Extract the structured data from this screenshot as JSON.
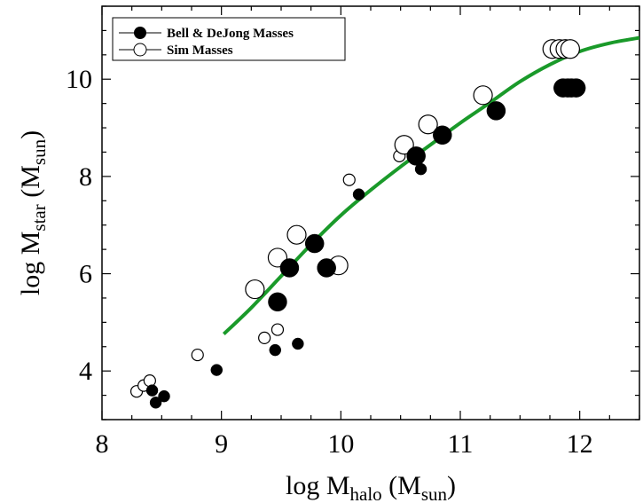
{
  "chart_data": {
    "type": "scatter",
    "xlim": [
      8,
      12.5
    ],
    "ylim": [
      3,
      11.5
    ],
    "xticks": [
      8,
      9,
      10,
      11,
      12
    ],
    "yticks": [
      4,
      6,
      8,
      10
    ],
    "xlabel": {
      "main": "log M",
      "sub": "halo",
      "unit_open": " (M",
      "unit_sub": "sun",
      "unit_close": ")"
    },
    "ylabel": {
      "main": "log M",
      "sub": "star",
      "unit_open": " (M",
      "unit_sub": "sun",
      "unit_close": ")"
    },
    "legend": {
      "placement": "top-left"
    },
    "series": [
      {
        "name": "Bell & DeJong Masses",
        "marker": "filled-circle",
        "color": "#000000",
        "points": [
          {
            "x": 8.42,
            "y": 3.6,
            "size": 1
          },
          {
            "x": 8.45,
            "y": 3.35,
            "size": 1
          },
          {
            "x": 8.52,
            "y": 3.48,
            "size": 1
          },
          {
            "x": 8.96,
            "y": 4.02,
            "size": 1
          },
          {
            "x": 9.45,
            "y": 4.43,
            "size": 1
          },
          {
            "x": 9.47,
            "y": 5.42,
            "size": 2
          },
          {
            "x": 9.57,
            "y": 6.12,
            "size": 2
          },
          {
            "x": 9.64,
            "y": 4.56,
            "size": 1
          },
          {
            "x": 9.78,
            "y": 6.62,
            "size": 2
          },
          {
            "x": 9.88,
            "y": 6.12,
            "size": 2
          },
          {
            "x": 10.15,
            "y": 7.63,
            "size": 1
          },
          {
            "x": 10.63,
            "y": 8.42,
            "size": 2
          },
          {
            "x": 10.67,
            "y": 8.15,
            "size": 1
          },
          {
            "x": 10.85,
            "y": 8.85,
            "size": 2
          },
          {
            "x": 11.3,
            "y": 9.35,
            "size": 2
          },
          {
            "x": 11.86,
            "y": 9.82,
            "size": 2
          },
          {
            "x": 11.9,
            "y": 9.82,
            "size": 2
          },
          {
            "x": 11.93,
            "y": 9.82,
            "size": 2
          },
          {
            "x": 11.97,
            "y": 9.82,
            "size": 2
          }
        ]
      },
      {
        "name": "Sim Masses",
        "marker": "open-circle",
        "color": "#000000",
        "points": [
          {
            "x": 8.29,
            "y": 3.58,
            "size": 1
          },
          {
            "x": 8.35,
            "y": 3.7,
            "size": 1
          },
          {
            "x": 8.4,
            "y": 3.8,
            "size": 1
          },
          {
            "x": 8.8,
            "y": 4.33,
            "size": 1
          },
          {
            "x": 9.28,
            "y": 5.68,
            "size": 2
          },
          {
            "x": 9.36,
            "y": 4.68,
            "size": 1
          },
          {
            "x": 9.47,
            "y": 4.85,
            "size": 1
          },
          {
            "x": 9.47,
            "y": 6.33,
            "size": 2
          },
          {
            "x": 9.63,
            "y": 6.8,
            "size": 2
          },
          {
            "x": 9.98,
            "y": 6.17,
            "size": 2
          },
          {
            "x": 10.07,
            "y": 7.93,
            "size": 1
          },
          {
            "x": 10.49,
            "y": 8.42,
            "size": 1
          },
          {
            "x": 10.53,
            "y": 8.65,
            "size": 2
          },
          {
            "x": 10.73,
            "y": 9.07,
            "size": 2
          },
          {
            "x": 11.19,
            "y": 9.67,
            "size": 2
          },
          {
            "x": 11.77,
            "y": 10.62,
            "size": 2
          },
          {
            "x": 11.83,
            "y": 10.62,
            "size": 2
          },
          {
            "x": 11.88,
            "y": 10.62,
            "size": 2
          },
          {
            "x": 11.92,
            "y": 10.62,
            "size": 2
          }
        ]
      }
    ],
    "curve": {
      "color": "#1a9a2a",
      "points": [
        [
          9.02,
          4.76
        ],
        [
          9.25,
          5.3
        ],
        [
          9.5,
          5.95
        ],
        [
          9.75,
          6.6
        ],
        [
          10.0,
          7.2
        ],
        [
          10.25,
          7.72
        ],
        [
          10.5,
          8.2
        ],
        [
          10.75,
          8.65
        ],
        [
          11.0,
          9.1
        ],
        [
          11.25,
          9.52
        ],
        [
          11.5,
          9.95
        ],
        [
          11.75,
          10.3
        ],
        [
          12.0,
          10.57
        ],
        [
          12.25,
          10.74
        ],
        [
          12.5,
          10.85
        ]
      ]
    }
  }
}
